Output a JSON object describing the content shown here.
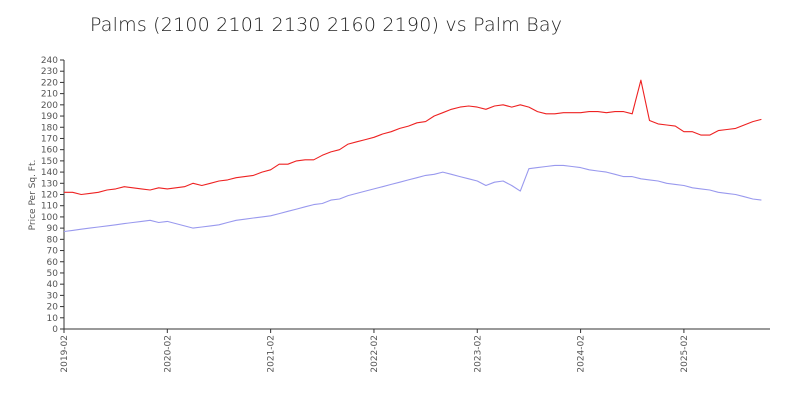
{
  "chart_data": {
    "type": "line",
    "title": "Palms (2100 2101 2130 2160 2190) vs Palm Bay",
    "xlabel": "",
    "ylabel": "Price Per Sq. Ft.",
    "ylim": [
      0,
      240
    ],
    "yticks": [
      0,
      10,
      20,
      30,
      40,
      50,
      60,
      70,
      80,
      90,
      100,
      110,
      120,
      130,
      140,
      150,
      160,
      170,
      180,
      190,
      200,
      210,
      220,
      230,
      240
    ],
    "x_start": "2019-02",
    "x_end": "2025-12",
    "xticks": [
      "2019-02",
      "2020-02",
      "2021-02",
      "2022-02",
      "2023-02",
      "2024-02",
      "2025-02"
    ],
    "grid": false,
    "legend": "none",
    "series": [
      {
        "color": "#ee2222",
        "values": [
          122,
          122,
          120,
          121,
          122,
          124,
          125,
          127,
          126,
          125,
          124,
          126,
          125,
          126,
          127,
          130,
          128,
          130,
          132,
          133,
          135,
          136,
          137,
          140,
          142,
          147,
          147,
          150,
          151,
          151,
          155,
          158,
          160,
          165,
          167,
          169,
          171,
          174,
          176,
          179,
          181,
          184,
          185,
          190,
          193,
          196,
          198,
          199,
          198,
          196,
          199,
          200,
          198,
          200,
          198,
          194,
          192,
          192,
          193,
          193,
          193,
          194,
          194,
          193,
          194,
          194,
          192,
          222,
          186,
          183,
          182,
          181,
          176,
          176,
          173,
          173,
          177,
          178,
          179,
          182,
          185,
          187
        ]
      },
      {
        "color": "#9999ee",
        "values": [
          87,
          88,
          89,
          90,
          91,
          92,
          93,
          94,
          95,
          96,
          97,
          95,
          96,
          94,
          92,
          90,
          91,
          92,
          93,
          95,
          97,
          98,
          99,
          100,
          101,
          103,
          105,
          107,
          109,
          111,
          112,
          115,
          116,
          119,
          121,
          123,
          125,
          127,
          129,
          131,
          133,
          135,
          137,
          138,
          140,
          138,
          136,
          134,
          132,
          128,
          131,
          132,
          128,
          123,
          143,
          144,
          145,
          146,
          146,
          145,
          144,
          142,
          141,
          140,
          138,
          136,
          136,
          134,
          133,
          132,
          130,
          129,
          128,
          126,
          125,
          124,
          122,
          121,
          120,
          118,
          116,
          115
        ]
      }
    ]
  }
}
